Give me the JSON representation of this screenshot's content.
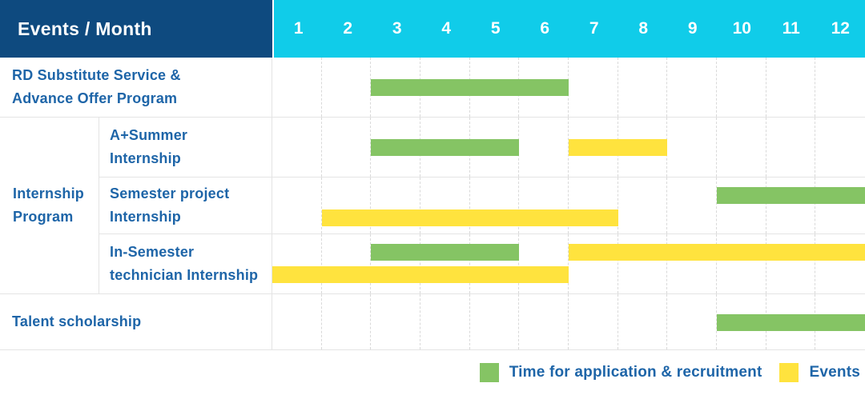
{
  "colors": {
    "header_bg": "#0E4A7F",
    "month_header_bg": "#10CCE9",
    "header_text": "#FFFFFF",
    "label_text": "#1E65A8",
    "green": "#85C464",
    "yellow": "#FFE33E",
    "row_line": "#E4E4E4",
    "month_line": "#D9D9D9",
    "background": "#FFFFFF"
  },
  "chart_data": {
    "type": "gantt",
    "title": "Events / Month",
    "x_axis": {
      "unit": "month",
      "range": [
        1,
        12
      ],
      "ticks": [
        "1",
        "2",
        "3",
        "4",
        "5",
        "6",
        "7",
        "8",
        "9",
        "10",
        "11",
        "12"
      ]
    },
    "legend": [
      {
        "key": "green",
        "label": "Time for application & recruitment"
      },
      {
        "key": "yellow",
        "label": "Events"
      }
    ],
    "group_cell": {
      "label": "Internship Program",
      "label_lines": [
        "Internship",
        "Program"
      ]
    },
    "rows": [
      {
        "group": "",
        "label": "RD Substitute Service & Advance Offer Program",
        "label_lines": [
          "RD Substitute Service &",
          "Advance Offer Program"
        ],
        "bars": [
          {
            "color": "green",
            "series": "Time for application & recruitment",
            "start_month": 3,
            "end_month": 6,
            "lane": "middle"
          }
        ]
      },
      {
        "group": "Internship Program",
        "label": "A+Summer Internship",
        "label_lines": [
          "A+Summer",
          "Internship"
        ],
        "bars": [
          {
            "color": "green",
            "series": "Time for application & recruitment",
            "start_month": 3,
            "end_month": 5,
            "lane": "middle"
          },
          {
            "color": "yellow",
            "series": "Events",
            "start_month": 7,
            "end_month": 8,
            "lane": "middle"
          }
        ]
      },
      {
        "group": "Internship Program",
        "label": "Semester project Internship",
        "label_lines": [
          "Semester project",
          "Internship"
        ],
        "bars": [
          {
            "color": "green",
            "series": "Time for application & recruitment",
            "start_month": 10,
            "end_month": 12,
            "lane": "top"
          },
          {
            "color": "yellow",
            "series": "Events",
            "start_month": 2,
            "end_month": 7,
            "lane": "bottom"
          }
        ]
      },
      {
        "group": "Internship Program",
        "label": "In-Semester technician Internship",
        "label_lines": [
          "In-Semester",
          "technician Internship"
        ],
        "bars": [
          {
            "color": "green",
            "series": "Time for application & recruitment",
            "start_month": 3,
            "end_month": 5,
            "lane": "top"
          },
          {
            "color": "yellow",
            "series": "Events",
            "start_month": 7,
            "end_month": 12,
            "lane": "top"
          },
          {
            "color": "yellow",
            "series": "Events",
            "start_month": 1,
            "end_month": 6,
            "lane": "bottom"
          }
        ]
      },
      {
        "group": "",
        "label": "Talent scholarship",
        "label_lines": [
          "Talent scholarship"
        ],
        "bars": [
          {
            "color": "green",
            "series": "Time for application & recruitment",
            "start_month": 10,
            "end_month": 12,
            "lane": "middle"
          }
        ]
      }
    ]
  }
}
